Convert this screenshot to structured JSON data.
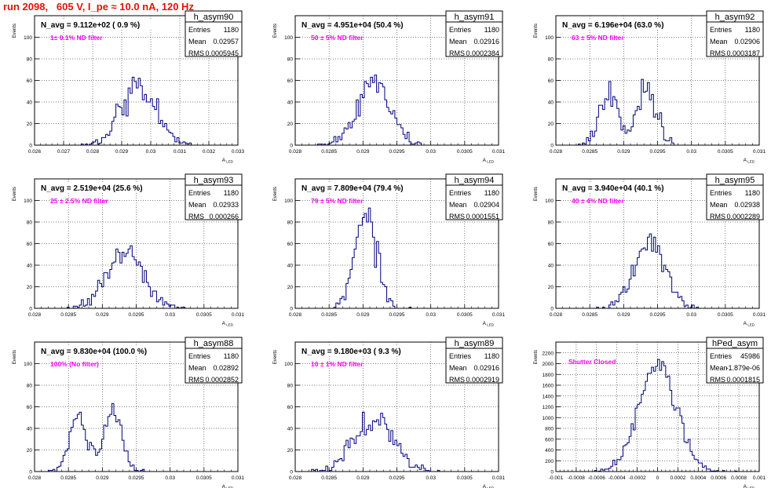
{
  "header": {
    "title": "run 2098,   605 V, I_pe ≈ 10.0 nA, 120 Hz"
  },
  "colors": {
    "line": "#000080",
    "header": "#e3120b",
    "filter_label": "#ff00ff",
    "grid": "#000000"
  },
  "stats_labels": {
    "entries": "Entries",
    "mean": "Mean",
    "rms": "RMS"
  },
  "chart_data": [
    {
      "type": "bar",
      "name": "h_asym90",
      "title": "N_avg = 9.112e+02 ( 0.9 %)",
      "filter": "1± 0.1% ND filter",
      "stats": {
        "entries": "1180",
        "mean": "0.02957",
        "rms": "0.0005945"
      },
      "ylabel": "Events",
      "xlabel": "A_LED",
      "xlim": [
        0.026,
        0.033
      ],
      "ylim": [
        0,
        120
      ],
      "xticks": [
        0.026,
        0.027,
        0.028,
        0.029,
        0.03,
        0.031,
        0.032,
        0.033
      ],
      "xtick_labels": [
        "0.026",
        "0.027",
        "0.028",
        "0.029",
        "0.03",
        "0.031",
        "0.032",
        "0.033"
      ],
      "yticks": [
        0,
        20,
        40,
        60,
        80,
        100
      ],
      "ytick_labels": [
        "0",
        "20",
        "40",
        "60",
        "80",
        "100"
      ],
      "grid": true,
      "shape": {
        "mode": "gauss",
        "params": [
          [
            1180,
            0.02957,
            0.0005945
          ]
        ]
      }
    },
    {
      "type": "bar",
      "name": "h_asym91",
      "title": "N_avg = 4.951e+04 (50.4 %)",
      "filter": "50 ± 5% ND filter",
      "stats": {
        "entries": "1180",
        "mean": "0.02916",
        "rms": "0.0002384"
      },
      "ylabel": "Events",
      "xlabel": "A_LED",
      "xlim": [
        0.028,
        0.031
      ],
      "ylim": [
        0,
        120
      ],
      "xticks": [
        0.028,
        0.0285,
        0.029,
        0.0295,
        0.03,
        0.0305,
        0.031
      ],
      "xtick_labels": [
        "0.028",
        "0.0285",
        "0.029",
        "0.0295",
        "0.03",
        "0.0305",
        "0.031"
      ],
      "yticks": [
        0,
        20,
        40,
        60,
        80,
        100
      ],
      "ytick_labels": [
        "0",
        "20",
        "40",
        "60",
        "80",
        "100"
      ],
      "grid": true,
      "shape": {
        "mode": "gauss",
        "params": [
          [
            1180,
            0.02916,
            0.0002384
          ]
        ]
      }
    },
    {
      "type": "bar",
      "name": "h_asym92",
      "title": "N_avg = 6.196e+04 (63.0 %)",
      "filter": "63 ± 5% ND filter",
      "stats": {
        "entries": "1180",
        "mean": "0.02906",
        "rms": "0.0003187"
      },
      "ylabel": "Events",
      "xlabel": "A_LED",
      "xlim": [
        0.028,
        0.031
      ],
      "ylim": [
        0,
        120
      ],
      "xticks": [
        0.028,
        0.0285,
        0.029,
        0.0295,
        0.03,
        0.0305,
        0.031
      ],
      "xtick_labels": [
        "0.028",
        "0.0285",
        "0.029",
        "0.0295",
        "0.03",
        "0.0305",
        "0.031"
      ],
      "yticks": [
        0,
        20,
        40,
        60,
        80,
        100
      ],
      "ytick_labels": [
        "0",
        "20",
        "40",
        "60",
        "80",
        "100"
      ],
      "grid": true,
      "shape": {
        "mode": "gauss",
        "params": [
          [
            560,
            0.02877,
            0.00014
          ],
          [
            620,
            0.02935,
            0.00014
          ]
        ]
      }
    },
    {
      "type": "bar",
      "name": "h_asym93",
      "title": "N_avg = 2.519e+04 (25.6 %)",
      "filter": "25 ± 2.5% ND filter",
      "stats": {
        "entries": "1180",
        "mean": "0.02933",
        "rms": "0.000266"
      },
      "ylabel": "Events",
      "xlabel": "A_LED",
      "xlim": [
        0.028,
        0.031
      ],
      "ylim": [
        0,
        120
      ],
      "xticks": [
        0.028,
        0.0285,
        0.029,
        0.0295,
        0.03,
        0.0305,
        0.031
      ],
      "xtick_labels": [
        "0.028",
        "0.0285",
        "0.029",
        "0.0295",
        "0.03",
        "0.0305",
        "0.031"
      ],
      "yticks": [
        0,
        20,
        40,
        60,
        80,
        100
      ],
      "ytick_labels": [
        "0",
        "20",
        "40",
        "60",
        "80",
        "100"
      ],
      "grid": true,
      "shape": {
        "mode": "gauss",
        "params": [
          [
            1180,
            0.02933,
            0.000266
          ]
        ]
      }
    },
    {
      "type": "bar",
      "name": "h_asym94",
      "title": "N_avg = 7.809e+04 (79.4 %)",
      "filter": "79 ± 5% ND filter",
      "stats": {
        "entries": "1180",
        "mean": "0.02904",
        "rms": "0.0001551"
      },
      "ylabel": "Events",
      "xlabel": "A_LED",
      "xlim": [
        0.028,
        0.031
      ],
      "ylim": [
        0,
        120
      ],
      "xticks": [
        0.028,
        0.0285,
        0.029,
        0.0295,
        0.03,
        0.0305,
        0.031
      ],
      "xtick_labels": [
        "0.028",
        "0.0285",
        "0.029",
        "0.0295",
        "0.03",
        "0.0305",
        "0.031"
      ],
      "yticks": [
        0,
        20,
        40,
        60,
        80,
        100
      ],
      "ytick_labels": [
        "0",
        "20",
        "40",
        "60",
        "80",
        "100"
      ],
      "grid": true,
      "shape": {
        "mode": "gauss",
        "params": [
          [
            1180,
            0.02904,
            0.0001551
          ]
        ]
      }
    },
    {
      "type": "bar",
      "name": "h_asym95",
      "title": "N_avg = 3.940e+04 (40.1 %)",
      "filter": "40 ± 4% ND filter",
      "stats": {
        "entries": "1180",
        "mean": "0.02938",
        "rms": "0.0002289"
      },
      "ylabel": "Events",
      "xlabel": "A_LED",
      "xlim": [
        0.028,
        0.031
      ],
      "ylim": [
        0,
        120
      ],
      "xticks": [
        0.028,
        0.0285,
        0.029,
        0.0295,
        0.03,
        0.0305,
        0.031
      ],
      "xtick_labels": [
        "0.028",
        "0.0285",
        "0.029",
        "0.0295",
        "0.03",
        "0.0305",
        "0.031"
      ],
      "yticks": [
        0,
        20,
        40,
        60,
        80,
        100
      ],
      "ytick_labels": [
        "0",
        "20",
        "40",
        "60",
        "80",
        "100"
      ],
      "grid": true,
      "shape": {
        "mode": "gauss",
        "params": [
          [
            1180,
            0.02938,
            0.0002289
          ]
        ]
      }
    },
    {
      "type": "bar",
      "name": "h_asym88",
      "title": "N_avg = 9.830e+04 (100.0 %)",
      "filter": "100% (No filter)",
      "stats": {
        "entries": "1180",
        "mean": "0.02892",
        "rms": "0.0002852"
      },
      "ylabel": "Events",
      "xlabel": "A_LED",
      "xlim": [
        0.028,
        0.031
      ],
      "ylim": [
        0,
        120
      ],
      "xticks": [
        0.028,
        0.0285,
        0.029,
        0.0295,
        0.03,
        0.0305,
        0.031
      ],
      "xtick_labels": [
        "0.028",
        "0.0285",
        "0.029",
        "0.0295",
        "0.03",
        "0.0305",
        "0.031"
      ],
      "yticks": [
        0,
        20,
        40,
        60,
        80,
        100
      ],
      "ytick_labels": [
        "0",
        "20",
        "40",
        "60",
        "80",
        "100"
      ],
      "grid": true,
      "shape": {
        "mode": "gauss",
        "params": [
          [
            560,
            0.02865,
            0.00013
          ],
          [
            620,
            0.02915,
            0.00013
          ]
        ]
      }
    },
    {
      "type": "bar",
      "name": "h_asym89",
      "title": "N_avg = 9.180e+03 ( 9.3 %)",
      "filter": "10 ± 1% ND filter",
      "stats": {
        "entries": "1180",
        "mean": "0.02916",
        "rms": "0.0002919"
      },
      "ylabel": "Events",
      "xlabel": "A_LED",
      "xlim": [
        0.028,
        0.031
      ],
      "ylim": [
        0,
        120
      ],
      "xticks": [
        0.028,
        0.0285,
        0.029,
        0.0295,
        0.03,
        0.0305,
        0.031
      ],
      "xtick_labels": [
        "0.028",
        "0.0285",
        "0.029",
        "0.0295",
        "0.03",
        "0.0305",
        "0.031"
      ],
      "yticks": [
        0,
        20,
        40,
        60,
        80,
        100
      ],
      "ytick_labels": [
        "0",
        "20",
        "40",
        "60",
        "80",
        "100"
      ],
      "grid": true,
      "shape": {
        "mode": "gauss",
        "params": [
          [
            1180,
            0.02916,
            0.0002919
          ]
        ]
      }
    },
    {
      "type": "bar",
      "name": "hPed_asym",
      "title": "",
      "filter": "Shutter Closed",
      "stats": {
        "entries": "45986",
        "mean": "-1.879e-06",
        "rms": "0.0001815"
      },
      "ylabel": "Events",
      "xlabel": "A_LED",
      "xlim": [
        -0.001,
        0.001
      ],
      "ylim": [
        0,
        2400
      ],
      "xticks": [
        -0.001,
        -0.0008,
        -0.0006,
        -0.0004,
        -0.0002,
        0,
        0.0002,
        0.0004,
        0.0006,
        0.0008,
        0.001
      ],
      "xtick_labels": [
        "-0.001",
        "-0.0008",
        "-0.0006",
        "-0.0004",
        "-0.0002",
        "0",
        "0.0002",
        "0.0004",
        "0.0006",
        "0.0008",
        "0.001"
      ],
      "yticks": [
        0,
        200,
        400,
        600,
        800,
        1000,
        1200,
        1400,
        1600,
        1800,
        2000,
        2200
      ],
      "ytick_labels": [
        "0",
        "200",
        "400",
        "600",
        "800",
        "1000",
        "1200",
        "1400",
        "1600",
        "1800",
        "2000",
        "2200"
      ],
      "grid": true,
      "shape": {
        "mode": "gauss",
        "params": [
          [
            45986,
            -1.9e-06,
            0.0001815
          ]
        ]
      }
    }
  ]
}
